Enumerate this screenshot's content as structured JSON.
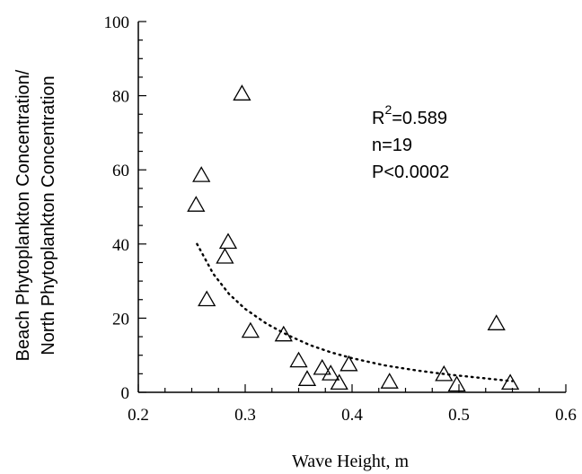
{
  "chart_data": {
    "type": "scatter",
    "title": "",
    "xlabel": "Wave Height, m",
    "ylabel_lines": [
      "Beach Phytoplankton Concentration/",
      "North Phytoplankton Concentration"
    ],
    "xlim": [
      0.2,
      0.6
    ],
    "ylim": [
      0,
      100
    ],
    "x_ticks": [
      0.2,
      0.3,
      0.4,
      0.5,
      0.6
    ],
    "x_tick_labels": [
      "0.2",
      "0.3",
      "0.4",
      "0.5",
      "0.6"
    ],
    "y_ticks": [
      0,
      20,
      40,
      60,
      80,
      100
    ],
    "y_tick_labels": [
      "0",
      "20",
      "40",
      "60",
      "80",
      "100"
    ],
    "grid": false,
    "marker": "open-triangle",
    "points": [
      {
        "x": 0.254,
        "y": 50.5
      },
      {
        "x": 0.259,
        "y": 58.5
      },
      {
        "x": 0.264,
        "y": 25.0
      },
      {
        "x": 0.281,
        "y": 36.5
      },
      {
        "x": 0.284,
        "y": 40.5
      },
      {
        "x": 0.297,
        "y": 80.5
      },
      {
        "x": 0.305,
        "y": 16.5
      },
      {
        "x": 0.336,
        "y": 15.5
      },
      {
        "x": 0.35,
        "y": 8.5
      },
      {
        "x": 0.358,
        "y": 3.5
      },
      {
        "x": 0.372,
        "y": 6.5
      },
      {
        "x": 0.38,
        "y": 5.0
      },
      {
        "x": 0.388,
        "y": 2.5
      },
      {
        "x": 0.397,
        "y": 7.5
      },
      {
        "x": 0.435,
        "y": 2.8
      },
      {
        "x": 0.486,
        "y": 4.8
      },
      {
        "x": 0.498,
        "y": 2.0
      },
      {
        "x": 0.535,
        "y": 18.5
      },
      {
        "x": 0.548,
        "y": 2.5
      }
    ],
    "fit_curve": {
      "style": "dotted",
      "x": [
        0.255,
        0.27,
        0.285,
        0.3,
        0.32,
        0.34,
        0.36,
        0.38,
        0.4,
        0.43,
        0.46,
        0.49,
        0.52,
        0.55
      ],
      "y": [
        40.0,
        32.0,
        26.5,
        22.5,
        18.5,
        15.4,
        12.8,
        10.8,
        9.2,
        7.3,
        5.9,
        4.8,
        3.9,
        3.0
      ]
    },
    "annotations": {
      "r_prefix": "R",
      "r_sup": "2",
      "r_value": "=0.589",
      "n": "n=19",
      "p": "P<0.0002"
    }
  }
}
